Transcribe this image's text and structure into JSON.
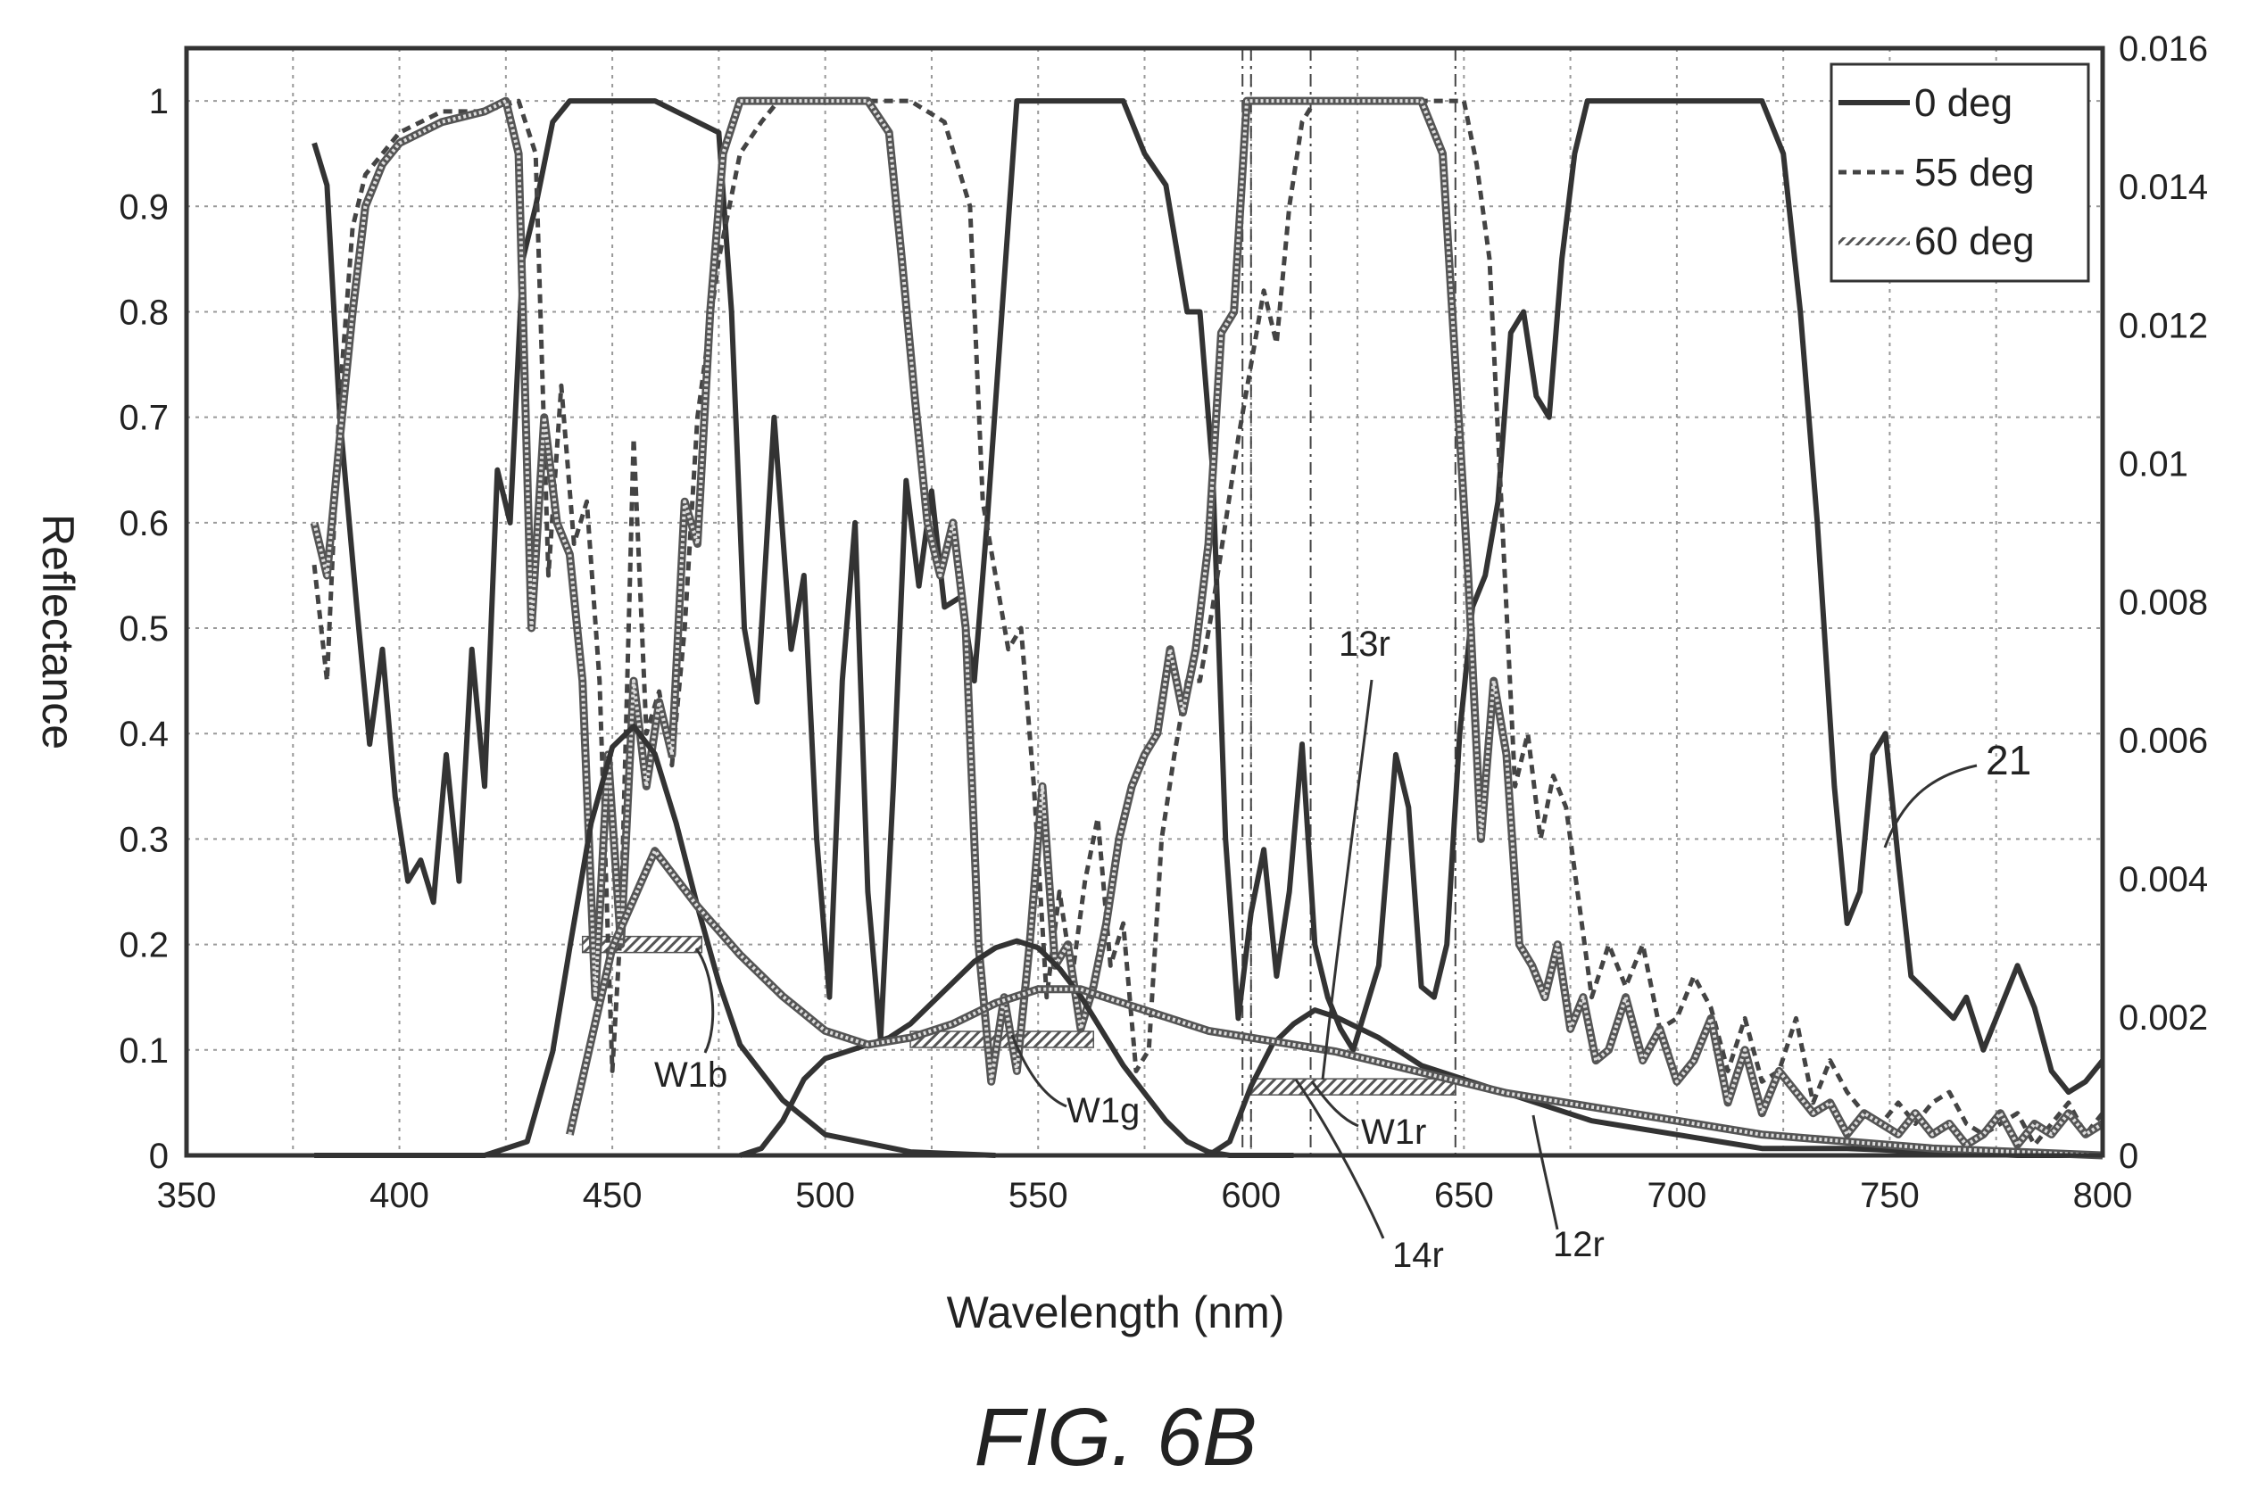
{
  "chart_data": {
    "type": "line",
    "xlabel": "Wavelength (nm)",
    "ylabel": "Reflectance",
    "xlim": [
      350,
      800
    ],
    "ylim": [
      0,
      1.05
    ],
    "y2lim": [
      0,
      0.016
    ],
    "x_ticks": [
      "350",
      "400",
      "450",
      "500",
      "550",
      "600",
      "650",
      "700",
      "750",
      "800"
    ],
    "y_ticks": [
      "0",
      "0.1",
      "0.2",
      "0.3",
      "0.4",
      "0.5",
      "0.6",
      "0.7",
      "0.8",
      "0.9",
      "1"
    ],
    "y2_ticks": [
      "0",
      "0.002",
      "0.004",
      "0.006",
      "0.008",
      "0.01",
      "0.012",
      "0.014",
      "0.016"
    ],
    "grid": true,
    "legend_position": "top-right",
    "caption": "FIG. 6B",
    "series": [
      {
        "name": "0 deg",
        "axis": "left",
        "style": "solid",
        "color": "#333333",
        "x": [
          380,
          383,
          386,
          390,
          393,
          396,
          399,
          402,
          405,
          408,
          411,
          414,
          417,
          420,
          423,
          426,
          429,
          432,
          436,
          440,
          460,
          475,
          478,
          481,
          484,
          488,
          492,
          495,
          498,
          501,
          504,
          507,
          510,
          513,
          516,
          519,
          522,
          525,
          528,
          532,
          535,
          538,
          545,
          560,
          570,
          575,
          580,
          585,
          588,
          591,
          594,
          597,
          600,
          603,
          606,
          609,
          612,
          615,
          618,
          621,
          624,
          627,
          630,
          634,
          637,
          640,
          643,
          646,
          649,
          652,
          655,
          658,
          661,
          664,
          667,
          670,
          673,
          676,
          679,
          690,
          700,
          710,
          720,
          725,
          729,
          733,
          737,
          740,
          743,
          746,
          749,
          752,
          755,
          760,
          765,
          768,
          772,
          776,
          780,
          784,
          788,
          792,
          796,
          800
        ],
        "y": [
          0.96,
          0.92,
          0.7,
          0.52,
          0.39,
          0.48,
          0.34,
          0.26,
          0.28,
          0.24,
          0.38,
          0.26,
          0.48,
          0.35,
          0.65,
          0.6,
          0.85,
          0.9,
          0.98,
          1.0,
          1.0,
          0.97,
          0.8,
          0.5,
          0.43,
          0.7,
          0.48,
          0.55,
          0.3,
          0.15,
          0.45,
          0.6,
          0.25,
          0.11,
          0.35,
          0.64,
          0.54,
          0.63,
          0.52,
          0.53,
          0.45,
          0.6,
          1.0,
          1.0,
          1.0,
          0.95,
          0.92,
          0.8,
          0.8,
          0.65,
          0.3,
          0.13,
          0.23,
          0.29,
          0.17,
          0.25,
          0.39,
          0.2,
          0.15,
          0.12,
          0.1,
          0.14,
          0.18,
          0.38,
          0.33,
          0.16,
          0.15,
          0.2,
          0.4,
          0.52,
          0.55,
          0.62,
          0.78,
          0.8,
          0.72,
          0.7,
          0.85,
          0.95,
          1.0,
          1.0,
          1.0,
          1.0,
          1.0,
          0.95,
          0.8,
          0.6,
          0.35,
          0.22,
          0.25,
          0.38,
          0.4,
          0.28,
          0.17,
          0.15,
          0.13,
          0.15,
          0.1,
          0.14,
          0.18,
          0.14,
          0.08,
          0.06,
          0.07,
          0.09
        ]
      },
      {
        "name": "55 deg",
        "axis": "left",
        "style": "dashed",
        "color": "#444444",
        "x": [
          380,
          383,
          386,
          389,
          392,
          396,
          400,
          410,
          420,
          428,
          432,
          435,
          438,
          441,
          444,
          447,
          450,
          452,
          455,
          458,
          461,
          464,
          467,
          470,
          475,
          480,
          485,
          489,
          493,
          496,
          500,
          510,
          520,
          528,
          534,
          537,
          540,
          543,
          546,
          549,
          552,
          555,
          558,
          561,
          564,
          567,
          570,
          573,
          576,
          579,
          582,
          585,
          588,
          591,
          594,
          597,
          600,
          603,
          606,
          609,
          612,
          615,
          620,
          640,
          650,
          653,
          656,
          659,
          662,
          665,
          668,
          671,
          674,
          677,
          680,
          684,
          688,
          692,
          696,
          700,
          704,
          708,
          712,
          716,
          720,
          724,
          728,
          732,
          736,
          740,
          744,
          748,
          752,
          756,
          760,
          764,
          768,
          772,
          776,
          780,
          784,
          788,
          792,
          796,
          800
        ],
        "y": [
          0.56,
          0.45,
          0.72,
          0.88,
          0.93,
          0.95,
          0.97,
          0.99,
          0.99,
          1.0,
          0.95,
          0.55,
          0.73,
          0.58,
          0.62,
          0.45,
          0.08,
          0.22,
          0.68,
          0.4,
          0.44,
          0.37,
          0.5,
          0.7,
          0.85,
          0.95,
          0.98,
          1.0,
          1.0,
          1.0,
          1.0,
          1.0,
          1.0,
          0.98,
          0.9,
          0.62,
          0.55,
          0.48,
          0.5,
          0.35,
          0.15,
          0.25,
          0.17,
          0.26,
          0.32,
          0.18,
          0.22,
          0.08,
          0.1,
          0.3,
          0.38,
          0.45,
          0.45,
          0.52,
          0.6,
          0.68,
          0.75,
          0.82,
          0.77,
          0.9,
          0.98,
          1.0,
          1.0,
          1.0,
          1.0,
          0.94,
          0.85,
          0.6,
          0.35,
          0.4,
          0.3,
          0.36,
          0.33,
          0.24,
          0.15,
          0.2,
          0.16,
          0.2,
          0.12,
          0.13,
          0.17,
          0.14,
          0.08,
          0.13,
          0.07,
          0.08,
          0.13,
          0.05,
          0.09,
          0.06,
          0.04,
          0.03,
          0.05,
          0.03,
          0.05,
          0.06,
          0.03,
          0.02,
          0.03,
          0.04,
          0.01,
          0.03,
          0.05,
          0.02,
          0.04
        ]
      },
      {
        "name": "60 deg",
        "axis": "left",
        "style": "hatched",
        "color": "#666666",
        "x": [
          380,
          383,
          386,
          389,
          392,
          396,
          400,
          410,
          420,
          425,
          428,
          431,
          434,
          437,
          440,
          443,
          446,
          449,
          452,
          455,
          458,
          461,
          464,
          467,
          470,
          473,
          476,
          480,
          485,
          490,
          500,
          510,
          515,
          518,
          521,
          524,
          527,
          530,
          533,
          536,
          539,
          542,
          545,
          548,
          551,
          554,
          557,
          560,
          563,
          566,
          569,
          572,
          575,
          578,
          581,
          584,
          587,
          590,
          593,
          596,
          599,
          602,
          605,
          610,
          640,
          645,
          648,
          651,
          654,
          657,
          660,
          663,
          666,
          669,
          672,
          675,
          678,
          681,
          684,
          688,
          692,
          696,
          700,
          704,
          708,
          712,
          716,
          720,
          724,
          728,
          732,
          736,
          740,
          744,
          748,
          752,
          756,
          760,
          764,
          768,
          772,
          776,
          780,
          784,
          788,
          792,
          796,
          800
        ],
        "y": [
          0.6,
          0.55,
          0.68,
          0.8,
          0.9,
          0.94,
          0.96,
          0.98,
          0.99,
          1.0,
          0.95,
          0.5,
          0.7,
          0.6,
          0.57,
          0.45,
          0.15,
          0.38,
          0.2,
          0.45,
          0.35,
          0.43,
          0.38,
          0.62,
          0.58,
          0.8,
          0.95,
          1.0,
          1.0,
          1.0,
          1.0,
          1.0,
          0.97,
          0.85,
          0.72,
          0.6,
          0.55,
          0.6,
          0.5,
          0.2,
          0.07,
          0.15,
          0.08,
          0.2,
          0.35,
          0.18,
          0.2,
          0.12,
          0.16,
          0.22,
          0.3,
          0.35,
          0.38,
          0.4,
          0.48,
          0.42,
          0.48,
          0.58,
          0.78,
          0.8,
          1.0,
          1.0,
          1.0,
          1.0,
          1.0,
          0.95,
          0.75,
          0.55,
          0.3,
          0.45,
          0.38,
          0.2,
          0.18,
          0.15,
          0.2,
          0.12,
          0.15,
          0.09,
          0.1,
          0.15,
          0.09,
          0.12,
          0.07,
          0.09,
          0.13,
          0.05,
          0.1,
          0.04,
          0.08,
          0.06,
          0.04,
          0.05,
          0.02,
          0.04,
          0.03,
          0.02,
          0.04,
          0.02,
          0.03,
          0.01,
          0.02,
          0.04,
          0.01,
          0.03,
          0.02,
          0.04,
          0.02,
          0.03
        ]
      },
      {
        "name": "",
        "axis": "right",
        "style": "solid",
        "color": "#333333",
        "x": [
          380,
          400,
          420,
          430,
          436,
          440,
          445,
          450,
          455,
          460,
          465,
          470,
          475,
          480,
          490,
          500,
          520,
          540
        ],
        "y": [
          0,
          0,
          0,
          0.0002,
          0.0015,
          0.003,
          0.0048,
          0.0059,
          0.0062,
          0.0058,
          0.0048,
          0.0036,
          0.0025,
          0.0016,
          0.0008,
          0.0003,
          5e-05,
          0.0
        ]
      },
      {
        "name": "",
        "axis": "right",
        "style": "solid",
        "color": "#333333",
        "x": [
          480,
          485,
          490,
          495,
          500,
          505,
          510,
          515,
          520,
          525,
          530,
          535,
          540,
          545,
          550,
          555,
          560,
          565,
          570,
          575,
          580,
          585,
          590,
          595,
          600,
          610
        ],
        "y": [
          0,
          0.0001,
          0.0005,
          0.0011,
          0.0014,
          0.0015,
          0.0016,
          0.0017,
          0.0019,
          0.0022,
          0.0025,
          0.0028,
          0.003,
          0.0031,
          0.003,
          0.0027,
          0.0023,
          0.0018,
          0.0013,
          0.0009,
          0.0005,
          0.0002,
          5e-05,
          0.0,
          0.0,
          0.0
        ]
      },
      {
        "name": "",
        "axis": "right",
        "style": "solid",
        "color": "#333333",
        "x": [
          590,
          595,
          600,
          605,
          610,
          615,
          620,
          630,
          640,
          650,
          660,
          670,
          680,
          690,
          700,
          710,
          720,
          740,
          760,
          780,
          800
        ],
        "y": [
          0,
          0.0002,
          0.001,
          0.0016,
          0.0019,
          0.0021,
          0.002,
          0.0017,
          0.0013,
          0.0011,
          0.0009,
          0.0007,
          0.0005,
          0.0004,
          0.0003,
          0.0002,
          0.0001,
          0.0001,
          5e-05,
          0.0,
          0.0
        ]
      },
      {
        "name": "",
        "axis": "right",
        "style": "hatched",
        "color": "#666666",
        "x": [
          440,
          450,
          460,
          470,
          480,
          490,
          500,
          510,
          520,
          530,
          540,
          550,
          560,
          570,
          580,
          590,
          600,
          620,
          640,
          660,
          680,
          700,
          720,
          740,
          760,
          780,
          800
        ],
        "y": [
          0.0003,
          0.003,
          0.0044,
          0.0036,
          0.0029,
          0.0023,
          0.0018,
          0.0016,
          0.0017,
          0.0019,
          0.0022,
          0.0024,
          0.0024,
          0.0022,
          0.002,
          0.0018,
          0.0017,
          0.0015,
          0.0012,
          0.0009,
          0.0007,
          0.0005,
          0.0003,
          0.0002,
          0.0001,
          5e-05,
          0.0
        ]
      }
    ],
    "bands": [
      {
        "label": "W1b",
        "x0": 443,
        "x1": 471,
        "y": 0.2
      },
      {
        "label": "W1g",
        "x0": 520,
        "x1": 563,
        "y": 0.11
      },
      {
        "label": "W1r",
        "x0": 600,
        "x1": 648,
        "y": 0.065
      }
    ],
    "vlines": [
      598,
      600,
      614,
      648
    ],
    "annotations": [
      "13r",
      "21",
      "14r",
      "12r",
      "W1b",
      "W1g",
      "W1r"
    ]
  }
}
